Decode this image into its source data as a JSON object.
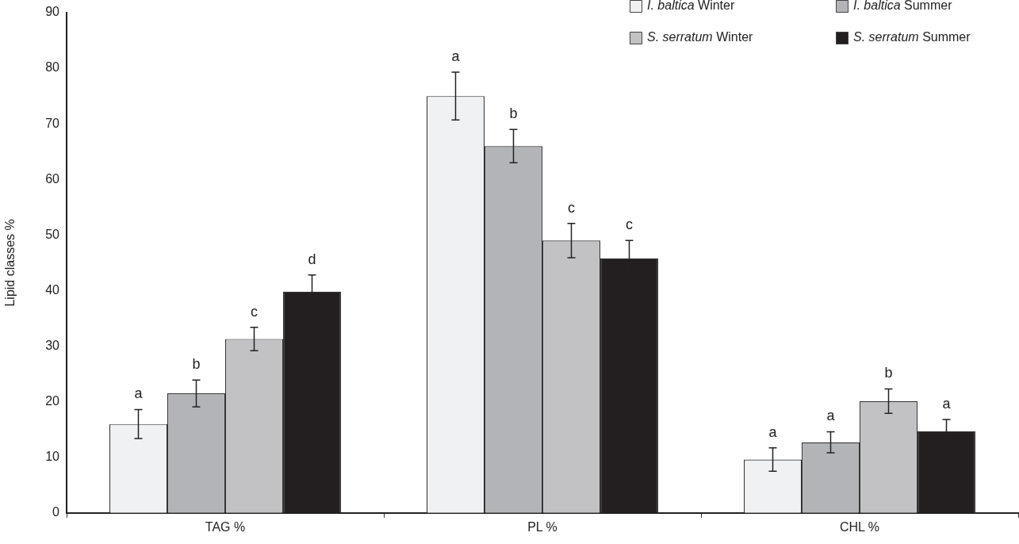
{
  "chart_data": {
    "type": "bar",
    "ylabel": "Lipid classes %",
    "categories": [
      "TAG %",
      "PL %",
      "CHL %"
    ],
    "series": [
      {
        "name": "I. baltica Winter",
        "color": "#f0f1f3",
        "values": [
          16.0,
          75.0,
          9.6
        ],
        "errors": [
          2.6,
          4.3,
          2.1
        ]
      },
      {
        "name": "I. baltica Summer",
        "color": "#b3b4b7",
        "values": [
          21.5,
          66.0,
          12.7
        ],
        "errors": [
          2.4,
          3.0,
          1.9
        ]
      },
      {
        "name": "S. serratum Winter",
        "color": "#c2c2c4",
        "values": [
          31.3,
          49.0,
          20.1
        ],
        "errors": [
          2.1,
          3.1,
          2.2
        ]
      },
      {
        "name": "S. serratum Summer",
        "color": "#231f20",
        "values": [
          39.8,
          45.8,
          14.7
        ],
        "errors": [
          3.0,
          3.2,
          2.1
        ]
      }
    ],
    "ylim": [
      0,
      90
    ],
    "yticks": [
      0,
      10,
      20,
      30,
      40,
      50,
      60,
      70,
      80,
      90
    ],
    "legend": "top right",
    "annotations": [
      "a",
      "b",
      "c",
      "d",
      "a",
      "b",
      "c",
      "c",
      "a",
      "a",
      "b",
      "a"
    ]
  }
}
